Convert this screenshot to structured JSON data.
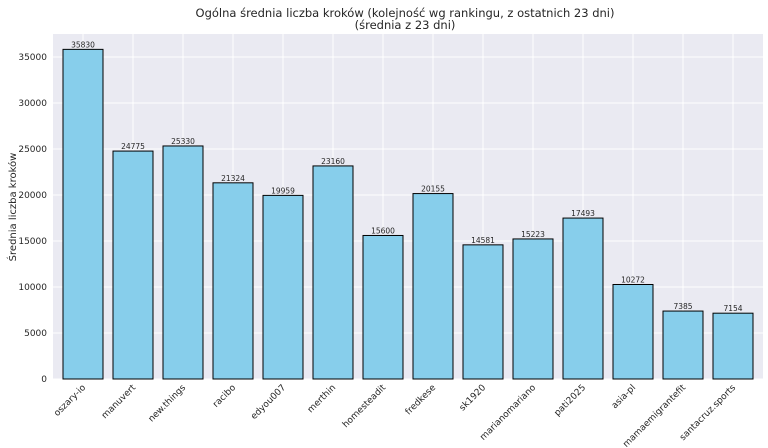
{
  "chart_data": {
    "type": "bar",
    "title": "Ogólna średnia liczba kroków (kolejność wg rankingu, z ostatnich 23 dni)",
    "subtitle": "(średnia z 23 dni)",
    "xlabel": "",
    "ylabel": "Średnia liczba kroków",
    "ylim": [
      0,
      37500
    ],
    "yticks": [
      0,
      5000,
      10000,
      15000,
      20000,
      25000,
      30000,
      35000
    ],
    "grid": true,
    "categories": [
      "oszary-io",
      "manuvert",
      "new.things",
      "racibo",
      "edyou007",
      "merthin",
      "homesteadit",
      "fredkese",
      "sk1920",
      "marianomariano",
      "pati2025",
      "asia-pl",
      "mamaemigrantefit",
      "santacruz.sports"
    ],
    "values": [
      35830,
      24775,
      25330,
      21324,
      19959,
      23160,
      15600,
      20155,
      14581,
      15223,
      17493,
      10272,
      7385,
      7154
    ],
    "colors": {
      "bar": "#87ceeb",
      "bar_edge": "#000000",
      "plot_bg": "#eaeaf2",
      "grid": "#ffffff"
    }
  }
}
